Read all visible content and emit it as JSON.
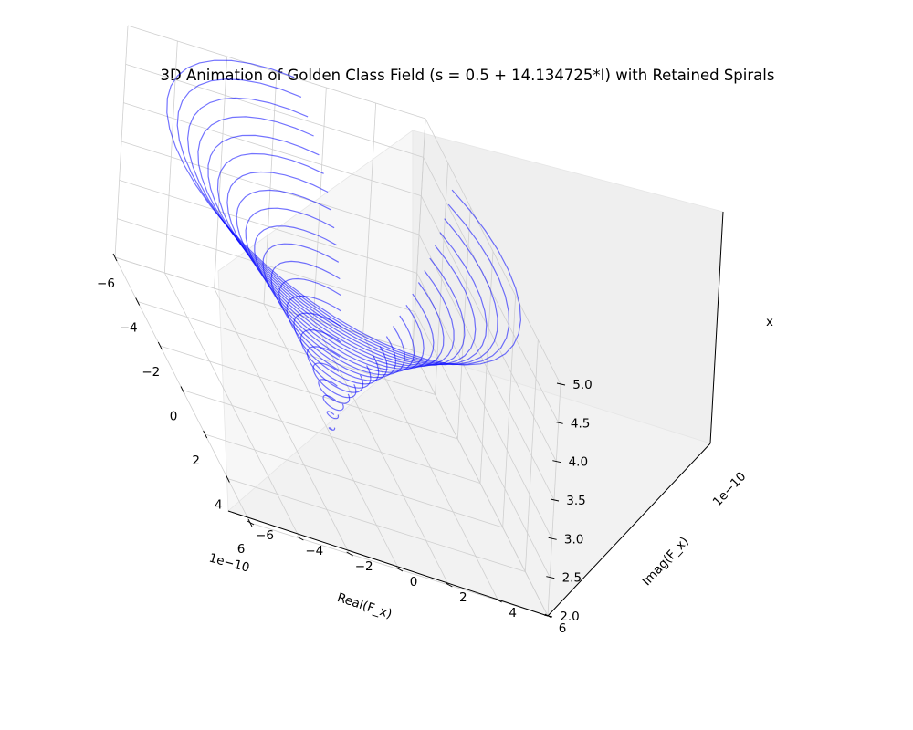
{
  "chart_data": {
    "type": "line",
    "projection": "3d",
    "title": "3D Animation of Golden Class Field (s = 0.5 + 14.134725*I) with Retained Spirals",
    "xlabel": "Real(F_x)",
    "ylabel": "Imag(F_x)",
    "zlabel": "x",
    "x_offset_label": "1e−10",
    "y_offset_label": "1e−10",
    "xlim": [
      -6,
      6
    ],
    "ylim": [
      -6,
      6
    ],
    "zlim": [
      2.0,
      5.0
    ],
    "x_ticks": [
      "−6",
      "−4",
      "−2",
      "0",
      "2",
      "4",
      "6"
    ],
    "y_ticks": [
      "−6",
      "−4",
      "−2",
      "0",
      "2",
      "4",
      "6"
    ],
    "z_ticks": [
      "2.0",
      "2.5",
      "3.0",
      "3.5",
      "4.0",
      "4.5",
      "5.0"
    ],
    "grid": true,
    "line_color": "#0000ff",
    "line_alpha": 0.55,
    "series_note": "retained spirals",
    "spiral_count": 22,
    "spiral_x_range": [
      2.1,
      4.9
    ],
    "spiral_radius_range": [
      0.1,
      6.5
    ],
    "spiral_turns": 0.85
  }
}
